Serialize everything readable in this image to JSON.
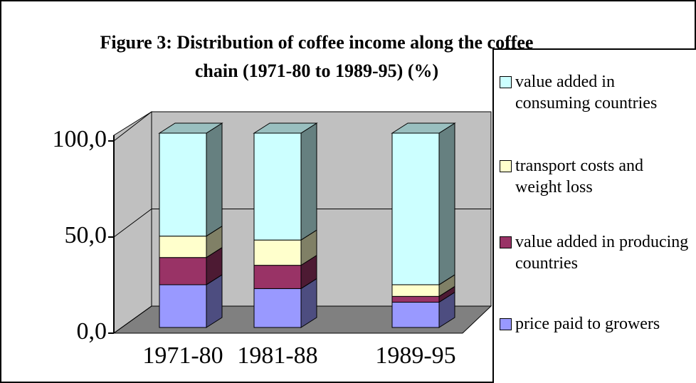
{
  "chart_data": {
    "type": "bar3d_stacked",
    "title": "Figure 3: Distribution of coffee income along the coffee chain (1971-80 to 1989-95) (%)",
    "categories": [
      "1971-80",
      "1981-88",
      "1989-95"
    ],
    "series": [
      {
        "name": "price paid to growers",
        "color": "#9999ff",
        "values": [
          22,
          20,
          13
        ]
      },
      {
        "name": "value added in producing countries",
        "color": "#993366",
        "values": [
          14,
          12,
          3
        ]
      },
      {
        "name": "transport costs and weight loss",
        "color": "#ffffcc",
        "values": [
          11,
          13,
          6
        ]
      },
      {
        "name": "value added in consuming countries",
        "color": "#ccffff",
        "values": [
          53,
          55,
          78
        ]
      }
    ],
    "ylim": [
      0,
      100
    ],
    "yticks": [
      {
        "value": 0,
        "label": "0,0"
      },
      {
        "value": 50,
        "label": "50,0"
      },
      {
        "value": 100,
        "label": "100,0"
      }
    ],
    "grid": true,
    "legend": "right"
  }
}
